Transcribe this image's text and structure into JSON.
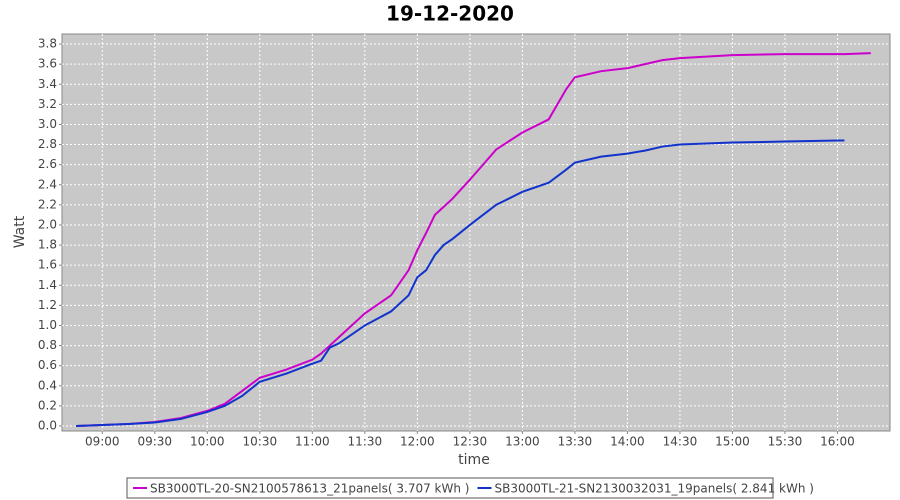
{
  "chart_data": {
    "type": "line",
    "title": "19-12-2020",
    "xlabel": "time",
    "ylabel": "Watt",
    "x": [
      "08:45",
      "09:00",
      "09:15",
      "09:30",
      "09:45",
      "10:00",
      "10:10",
      "10:20",
      "10:30",
      "10:45",
      "11:00",
      "11:05",
      "11:10",
      "11:15",
      "11:30",
      "11:45",
      "11:55",
      "12:00",
      "12:05",
      "12:10",
      "12:15",
      "12:20",
      "12:30",
      "12:45",
      "13:00",
      "13:15",
      "13:25",
      "13:30",
      "13:45",
      "14:00",
      "14:10",
      "14:20",
      "14:30",
      "15:00",
      "15:30",
      "16:00",
      "16:04",
      "16:19"
    ],
    "series": [
      {
        "name": "SB3000TL-20-SN2100578613_21panels( 3.707 kWh )",
        "color": "#cc00cc",
        "values": [
          0,
          0.01,
          0.02,
          0.04,
          0.08,
          0.15,
          0.22,
          0.35,
          0.48,
          0.56,
          0.66,
          0.72,
          0.8,
          0.88,
          1.12,
          1.3,
          1.55,
          1.75,
          1.92,
          2.1,
          2.18,
          2.26,
          2.45,
          2.75,
          2.92,
          3.05,
          3.35,
          3.47,
          3.53,
          3.56,
          3.6,
          3.64,
          3.66,
          3.69,
          3.7,
          3.7,
          3.7,
          3.71
        ]
      },
      {
        "name": "SB3000TL-21-SN2130032031_19panels( 2.841 kWh )",
        "color": "#1133cc",
        "values": [
          0,
          0.01,
          0.02,
          0.035,
          0.07,
          0.14,
          0.2,
          0.3,
          0.44,
          0.52,
          0.62,
          0.65,
          0.78,
          0.82,
          1.0,
          1.14,
          1.3,
          1.48,
          1.55,
          1.7,
          1.8,
          1.86,
          2.0,
          2.2,
          2.33,
          2.42,
          2.55,
          2.62,
          2.68,
          2.71,
          2.74,
          2.78,
          2.8,
          2.82,
          2.83,
          2.84,
          2.84,
          null
        ]
      }
    ],
    "xlim": [
      "08:37",
      "16:30"
    ],
    "xticks": [
      "09:00",
      "09:30",
      "10:00",
      "10:30",
      "11:00",
      "11:30",
      "12:00",
      "12:30",
      "13:00",
      "13:30",
      "14:00",
      "14:30",
      "15:00",
      "15:30",
      "16:00"
    ],
    "ylim": [
      -0.05,
      3.9
    ],
    "yticks": [
      {
        "value": 0,
        "label": "0.0"
      },
      0.2,
      0.4,
      0.6,
      0.8,
      {
        "value": 1,
        "label": "1.0"
      },
      1.2,
      1.4,
      1.6,
      1.8,
      {
        "value": 2,
        "label": "2.0"
      },
      2.2,
      2.4,
      2.6,
      2.8,
      {
        "value": 3,
        "label": "3.0"
      },
      3.2,
      3.4,
      3.6,
      3.8
    ],
    "grid": true
  }
}
